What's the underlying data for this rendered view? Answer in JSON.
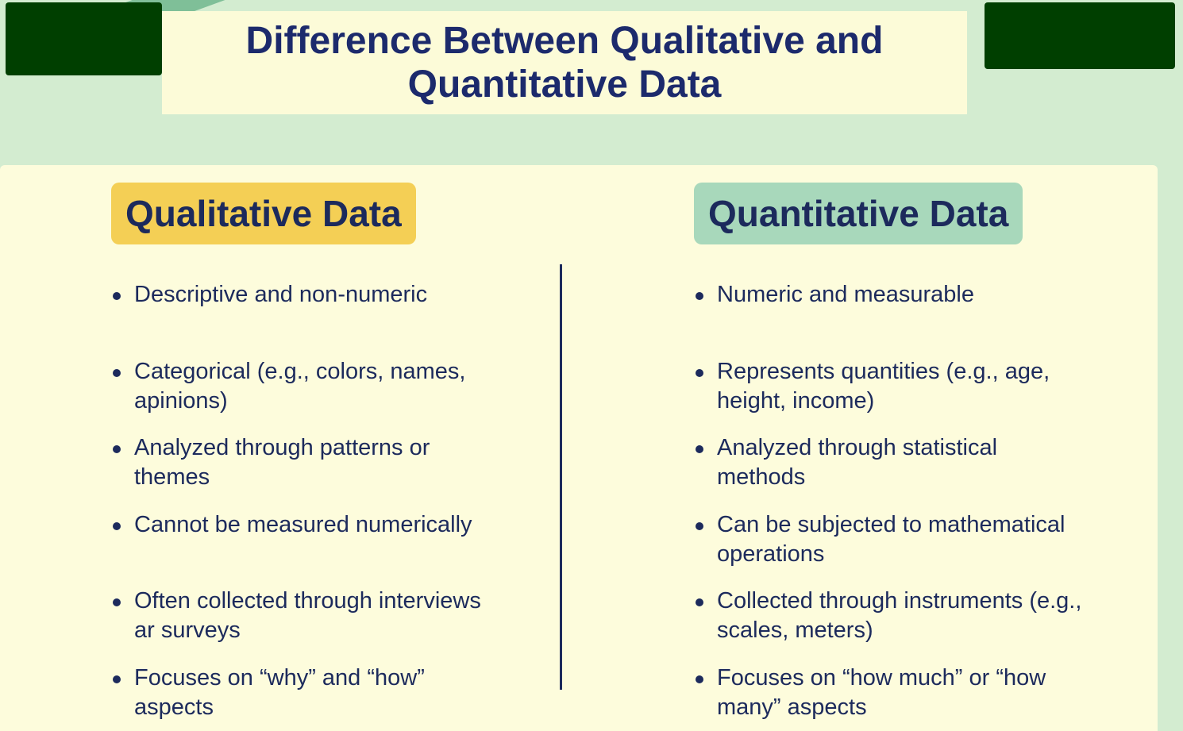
{
  "title": "Difference Between Qualitative and Quantitative Data",
  "left": {
    "heading": "Qualitative Data",
    "items": [
      "Descriptive and non-numeric",
      "Categorical (e.g., colors, names, apinions)",
      "Analyzed through patterns or themes",
      "Cannot be measured numerically",
      "Often collected through interviews ar surveys",
      "Focuses on “why” and “how” aspects"
    ]
  },
  "right": {
    "heading": "Quantitative Data",
    "items": [
      "Numeric and measurable",
      "Represents quantities (e.g., age, height, income)",
      "Analyzed through statistical methods",
      "Can be subjected to mathematical operations",
      "Collected through instruments (e.g., scales, meters)",
      "Focuses on “how much” or “how many” aspects"
    ]
  },
  "colors": {
    "background": "#d3ecd0",
    "panel": "#fdfcdc",
    "qualitative_accent": "#f4cf55",
    "quantitative_accent": "#a8d8bb",
    "text": "#1c2a5c",
    "redaction": "#003f00"
  }
}
